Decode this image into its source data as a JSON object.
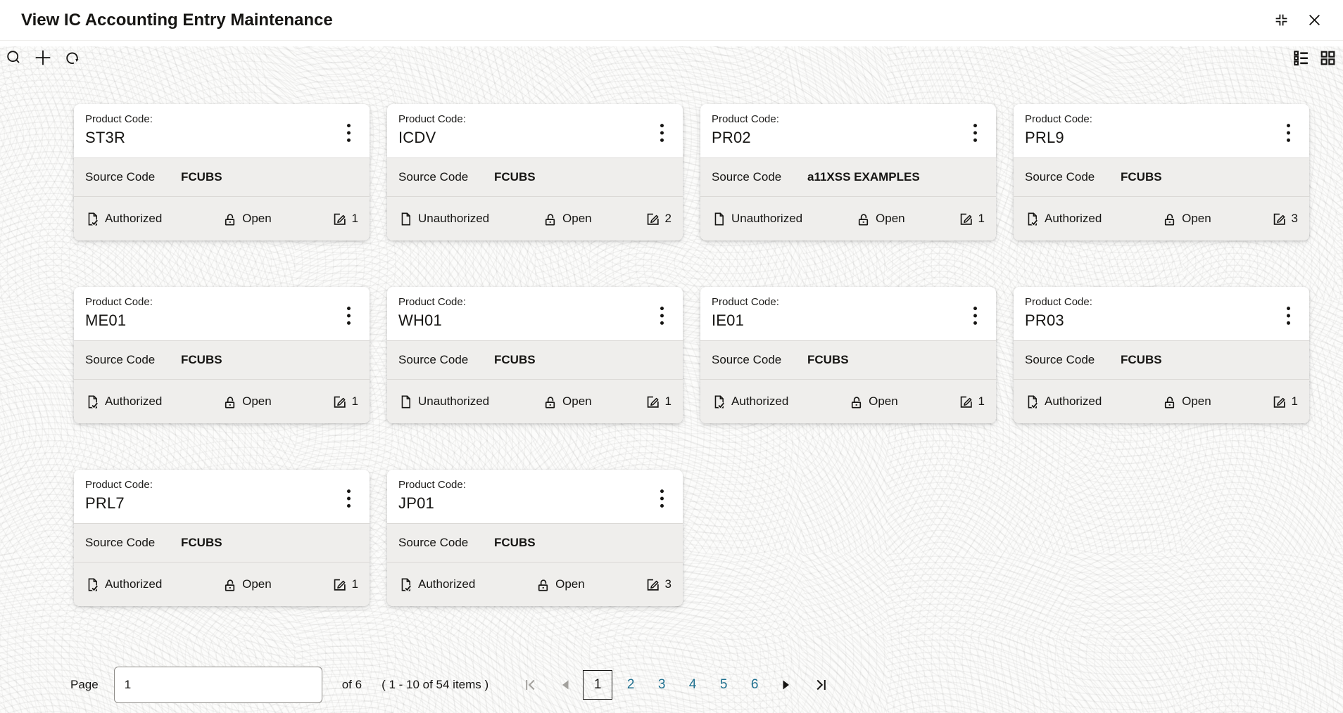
{
  "window": {
    "title": "View IC Accounting Entry Maintenance",
    "icons": [
      "collapse-icon",
      "close-icon"
    ]
  },
  "toolbar": {
    "left_icons": [
      "search-icon",
      "add-icon",
      "refresh-icon"
    ],
    "right_icons": [
      "list-view-icon",
      "grid-view-icon"
    ]
  },
  "card_labels": {
    "product_code": "Product Code:",
    "source_code": "Source Code"
  },
  "cards": [
    {
      "code": "ST3R",
      "source": "FCUBS",
      "auth_status": "Authorized",
      "record_status": "Open",
      "edit_count": "1"
    },
    {
      "code": "ICDV",
      "source": "FCUBS",
      "auth_status": "Unauthorized",
      "record_status": "Open",
      "edit_count": "2"
    },
    {
      "code": "PR02",
      "source": "a11XSS EXAMPLES",
      "auth_status": "Unauthorized",
      "record_status": "Open",
      "edit_count": "1"
    },
    {
      "code": "PRL9",
      "source": "FCUBS",
      "auth_status": "Authorized",
      "record_status": "Open",
      "edit_count": "3"
    },
    {
      "code": "ME01",
      "source": "FCUBS",
      "auth_status": "Authorized",
      "record_status": "Open",
      "edit_count": "1"
    },
    {
      "code": "WH01",
      "source": "FCUBS",
      "auth_status": "Unauthorized",
      "record_status": "Open",
      "edit_count": "1"
    },
    {
      "code": "IE01",
      "source": "FCUBS",
      "auth_status": "Authorized",
      "record_status": "Open",
      "edit_count": "1"
    },
    {
      "code": "PR03",
      "source": "FCUBS",
      "auth_status": "Authorized",
      "record_status": "Open",
      "edit_count": "1"
    },
    {
      "code": "PRL7",
      "source": "FCUBS",
      "auth_status": "Authorized",
      "record_status": "Open",
      "edit_count": "1"
    },
    {
      "code": "JP01",
      "source": "FCUBS",
      "auth_status": "Authorized",
      "record_status": "Open",
      "edit_count": "3"
    }
  ],
  "pagination": {
    "page_label": "Page",
    "page_input_value": "1",
    "total_label": "of 6",
    "items_label": "( 1 - 10 of 54 items )",
    "pages": [
      "1",
      "2",
      "3",
      "4",
      "5",
      "6"
    ],
    "current_page": "1"
  },
  "colors": {
    "text": "#161513",
    "accent_link": "#20708f",
    "card_section_bg": "#efeeec",
    "disabled_gray": "#a3a19d"
  }
}
